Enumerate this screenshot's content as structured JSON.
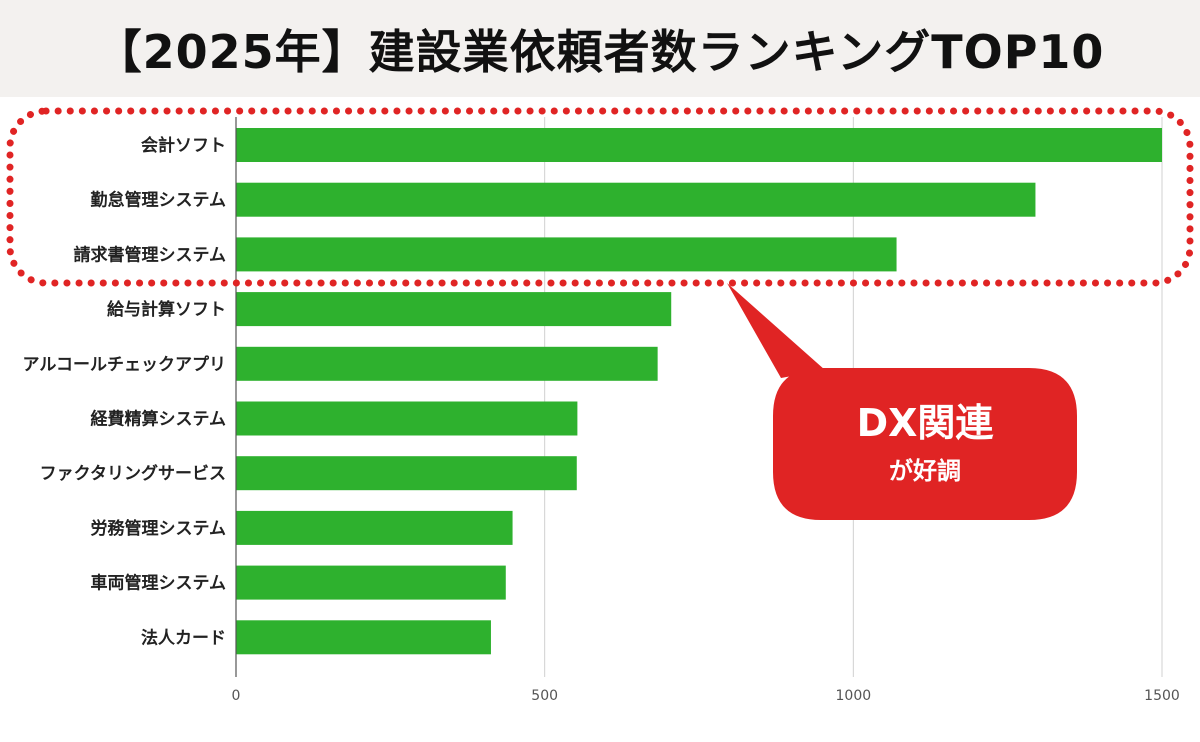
{
  "header": {
    "title": "【2025年】建設業依頼者数ランキングTOP10"
  },
  "callout": {
    "line1": "DX関連",
    "line2": "が好調"
  },
  "colors": {
    "bar": "#2eb12e",
    "highlight": "#e02424",
    "header_bg": "#f3f1ef"
  },
  "chart_data": {
    "type": "bar",
    "orientation": "horizontal",
    "title": "",
    "xlabel": "",
    "ylabel": "",
    "xlim": [
      0,
      1500
    ],
    "xticks": [
      0,
      500,
      1000,
      1500
    ],
    "grid": true,
    "categories": [
      "会計ソフト",
      "勤怠管理システム",
      "請求書管理システム",
      "給与計算ソフト",
      "アルコールチェックアプリ",
      "経費精算システム",
      "ファクタリングサービス",
      "労務管理システム",
      "車両管理システム",
      "法人カード"
    ],
    "values": [
      1500,
      1295,
      1070,
      705,
      683,
      553,
      552,
      448,
      437,
      413
    ],
    "highlighted": [
      "会計ソフト",
      "勤怠管理システム",
      "請求書管理システム"
    ]
  }
}
